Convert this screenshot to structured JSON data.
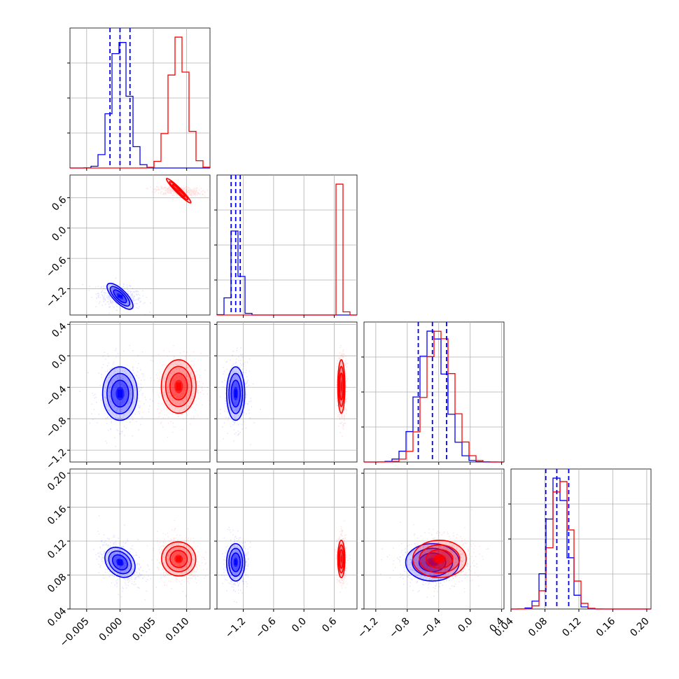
{
  "chart_data": {
    "type": "corner",
    "parameters": 4,
    "grid": true,
    "colors": {
      "series_a": "#0000ff",
      "series_b": "#ff0000"
    },
    "series": [
      {
        "color": "#0000ff",
        "means": [
          0.0,
          -1.35,
          -0.48,
          0.095
        ],
        "stds": [
          0.0013,
          0.09,
          0.17,
          0.011
        ],
        "corr_01": -0.3,
        "corr_03": -0.35,
        "corr_23": 0.0
      },
      {
        "color": "#ff0000",
        "means": [
          0.0088,
          0.74,
          -0.39,
          0.099
        ],
        "stds": [
          0.0013,
          0.035,
          0.17,
          0.011
        ],
        "corr_01": -0.3,
        "corr_03": -0.1,
        "corr_23": 0.0
      }
    ],
    "quantile_lines": {
      "color": "#0000ff",
      "param_0": [
        -0.0015,
        0.0,
        0.0015
      ],
      "param_1": [
        -1.44,
        -1.35,
        -1.26
      ],
      "param_2": [
        -0.66,
        -0.48,
        -0.3
      ],
      "param_3": [
        0.081,
        0.094,
        0.108
      ]
    },
    "ranges": [
      [
        -0.0075,
        0.0135
      ],
      [
        -1.72,
        1.05
      ],
      [
        -1.35,
        0.43
      ],
      [
        0.04,
        0.205
      ]
    ],
    "axis_ticks": {
      "param_0": [
        -0.005,
        0.0,
        0.005,
        0.01
      ],
      "param_1": [
        -1.2,
        -0.6,
        0.0,
        0.6
      ],
      "param_2": [
        -1.2,
        -0.8,
        -0.4,
        0.0,
        0.4
      ],
      "param_3": [
        0.04,
        0.08,
        0.12,
        0.16,
        0.2
      ]
    },
    "tick_labels": {
      "param_0": [
        "−0.005",
        "0.000",
        "0.005",
        "0.010"
      ],
      "param_1": [
        "−1.2",
        "−0.6",
        "0.0",
        "0.6"
      ],
      "param_2": [
        "−1.2",
        "−0.8",
        "−0.4",
        "0.0",
        "0.4"
      ],
      "param_3": [
        "0.04",
        "0.08",
        "0.12",
        "0.16",
        "0.20"
      ]
    },
    "y_ticks": {
      "param_1": [
        -1.2,
        -0.6,
        0.0,
        0.6
      ],
      "param_2": [
        -1.2,
        -0.8,
        -0.4,
        0.0,
        0.4
      ],
      "param_3": [
        0.04,
        0.08,
        0.12,
        0.16,
        0.2
      ]
    },
    "y_tick_labels": {
      "param_1": [
        "−1.2",
        "−0.6",
        "0.0",
        "0.6"
      ],
      "param_2": [
        "−1.2",
        "−0.8",
        "−0.4",
        "0.0",
        "0.4"
      ],
      "param_3": [
        "0.04",
        "0.08",
        "0.12",
        "0.16",
        "0.20"
      ]
    }
  }
}
